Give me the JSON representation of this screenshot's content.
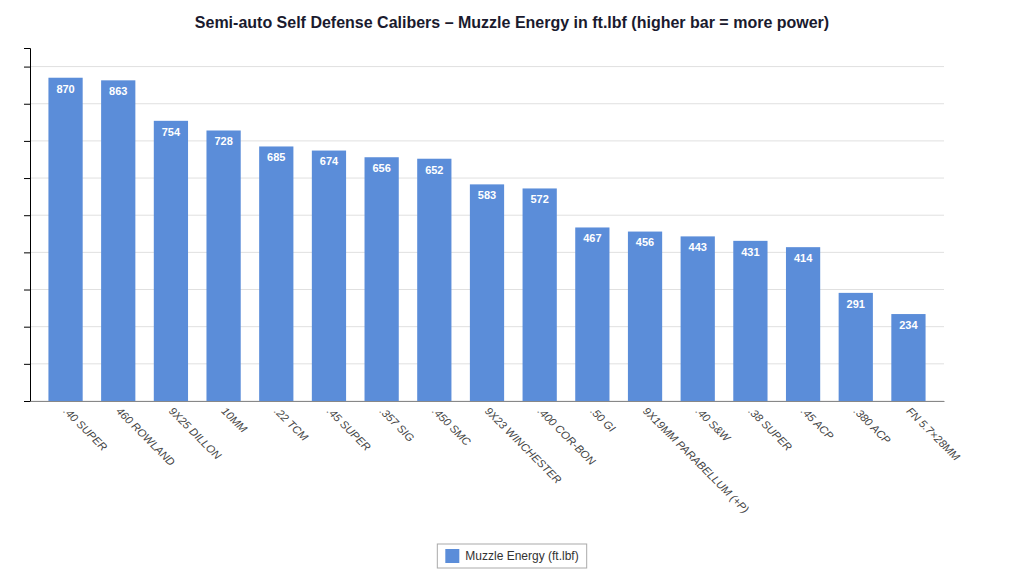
{
  "chart_data": {
    "type": "bar",
    "title": "Semi-auto Self Defense Calibers – Muzzle Energy in ft.lbf (higher bar = more power)",
    "categories": [
      ".40 SUPER",
      "460 ROWLAND",
      "9X25 DILLON",
      "10MM",
      ".22 TCM",
      ".45 SUPER",
      ".357 SIG",
      ".450 SMC",
      "9X23 WINCHESTER",
      ".400 COR-BON",
      ".50 GI",
      "9X19MM PARABELLUM (+P)",
      ".40 S&W",
      ".38 SUPER",
      ".45 ACP",
      ".380 ACP",
      "FN 5.7×28MM"
    ],
    "series": [
      {
        "name": "Muzzle Energy (ft.lbf)",
        "color": "#5B8DD9",
        "values": [
          870,
          863,
          754,
          728,
          685,
          674,
          656,
          652,
          583,
          572,
          467,
          456,
          443,
          431,
          414,
          291,
          234
        ]
      }
    ],
    "ylim": [
      0,
      950
    ],
    "yticks": [
      0,
      100,
      200,
      300,
      400,
      500,
      600,
      700,
      800,
      900
    ],
    "grid": true,
    "data_labels": true,
    "legend": "bottom",
    "tick_labels": "x"
  }
}
